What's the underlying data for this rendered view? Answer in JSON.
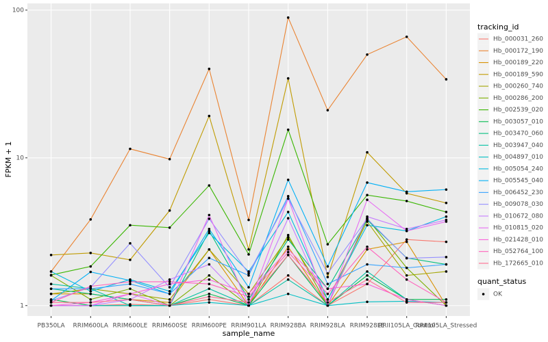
{
  "chart_data": {
    "type": "line",
    "x_label": "sample_name",
    "y_label": "FPKM + 1",
    "log_scale": "y",
    "grid": true,
    "categories": [
      "PB350LA",
      "RRIM600LA",
      "RRIM600LE",
      "RRIM600SE",
      "RRIM600PE",
      "RRIM901LA",
      "RRIM928BA",
      "RRIM928LA",
      "RRIM928LE",
      "RRII105LA_Control",
      "RRII105LA_Stressed"
    ],
    "ylim": [
      0.85,
      111
    ],
    "yticks": [
      1,
      10,
      100
    ],
    "legend_title": "tracking_id",
    "point_legend": {
      "title": "quant_status",
      "items": [
        "OK"
      ],
      "color": "#000000"
    },
    "series": [
      {
        "name": "Hb_000031_260",
        "color": "#F8766D",
        "values": [
          1.0,
          1.0,
          1.02,
          1.0,
          1.1,
          1.0,
          1.6,
          1.0,
          1.4,
          2.8,
          2.7
        ]
      },
      {
        "name": "Hb_000172_190",
        "color": "#EA8331",
        "values": [
          1.7,
          3.83,
          11.5,
          9.8,
          40,
          3.8,
          89,
          21,
          50,
          66,
          34
        ]
      },
      {
        "name": "Hb_000189_220",
        "color": "#D89000",
        "values": [
          1.2,
          1.2,
          1.1,
          1.05,
          2.4,
          1.0,
          2.5,
          1.0,
          2.4,
          2.7,
          1.0
        ]
      },
      {
        "name": "Hb_000189_590",
        "color": "#C09B00",
        "values": [
          2.2,
          2.27,
          2.04,
          4.4,
          19.2,
          2.4,
          34.5,
          1.56,
          10.9,
          5.75,
          4.95
        ]
      },
      {
        "name": "Hb_000260_740",
        "color": "#A3A500",
        "values": [
          1.2,
          1.3,
          1.2,
          1.1,
          2.4,
          1.2,
          2.9,
          1.1,
          3.7,
          1.6,
          1.7
        ]
      },
      {
        "name": "Hb_000286_200",
        "color": "#7CAE00",
        "values": [
          1.6,
          1.1,
          1.3,
          1.0,
          1.6,
          1.0,
          3.0,
          1.0,
          3.9,
          1.8,
          1.0
        ]
      },
      {
        "name": "Hb_002539_020",
        "color": "#39B600",
        "values": [
          1.61,
          1.84,
          3.5,
          3.37,
          6.5,
          2.22,
          15.5,
          2.6,
          5.6,
          5.1,
          4.3
        ]
      },
      {
        "name": "Hb_003057_010",
        "color": "#00BB4E",
        "values": [
          1.1,
          1.0,
          1.0,
          1.0,
          1.2,
          1.0,
          2.2,
          1.0,
          1.6,
          1.1,
          1.1
        ]
      },
      {
        "name": "Hb_003470_060",
        "color": "#00BF7D",
        "values": [
          1.3,
          1.2,
          1.1,
          1.0,
          3.2,
          1.1,
          2.8,
          1.3,
          3.8,
          2.1,
          1.9
        ]
      },
      {
        "name": "Hb_003947_040",
        "color": "#00C1A3",
        "values": [
          1.4,
          1.3,
          1.0,
          1.0,
          1.3,
          1.0,
          1.5,
          1.0,
          1.7,
          1.1,
          1.0
        ]
      },
      {
        "name": "Hb_004897_010",
        "color": "#00BFC4",
        "values": [
          1.0,
          1.0,
          1.0,
          1.0,
          1.05,
          1.0,
          1.2,
          1.0,
          1.06,
          1.07,
          1.05
        ]
      },
      {
        "name": "Hb_005054_240",
        "color": "#00BAE0",
        "values": [
          1.7,
          1.25,
          1.5,
          1.25,
          3.1,
          1.7,
          4.3,
          1.1,
          3.5,
          3.2,
          4.0
        ]
      },
      {
        "name": "Hb_005545_040",
        "color": "#00B0F6",
        "values": [
          1.08,
          1.69,
          1.48,
          1.2,
          3.3,
          1.33,
          7.1,
          1.84,
          6.8,
          5.9,
          6.1
        ]
      },
      {
        "name": "Hb_006452_230",
        "color": "#35A2FF",
        "values": [
          1.3,
          1.3,
          1.4,
          1.2,
          2.1,
          1.6,
          5.5,
          1.4,
          1.9,
          1.8,
          1.9
        ]
      },
      {
        "name": "Hb_009078_030",
        "color": "#9590FF",
        "values": [
          1.08,
          1.33,
          2.64,
          1.33,
          3.87,
          1.65,
          5.3,
          1.65,
          3.87,
          2.09,
          2.13
        ]
      },
      {
        "name": "Hb_010672_080",
        "color": "#C77CFF",
        "values": [
          1.0,
          1.0,
          1.1,
          1.5,
          1.9,
          1.0,
          3.9,
          1.0,
          4.0,
          3.3,
          3.8
        ]
      },
      {
        "name": "Hb_010815_020",
        "color": "#E76BF3",
        "values": [
          1.0,
          1.0,
          1.2,
          1.0,
          4.1,
          1.0,
          5.3,
          1.0,
          5.2,
          3.2,
          3.7
        ]
      },
      {
        "name": "Hb_021428_010",
        "color": "#FA62DB",
        "values": [
          1.0,
          1.05,
          1.2,
          1.4,
          1.5,
          1.2,
          2.4,
          1.3,
          1.4,
          1.1,
          1.0
        ]
      },
      {
        "name": "Hb_052764_100",
        "color": "#FF62BC",
        "values": [
          1.05,
          1.35,
          1.45,
          1.45,
          1.4,
          1.15,
          2.3,
          1.2,
          2.5,
          1.5,
          1.05
        ]
      },
      {
        "name": "Hb_172665_010",
        "color": "#FF6C90",
        "values": [
          1.05,
          1.05,
          1.1,
          1.0,
          1.15,
          1.05,
          2.2,
          1.05,
          1.5,
          1.05,
          1.05
        ]
      }
    ]
  }
}
